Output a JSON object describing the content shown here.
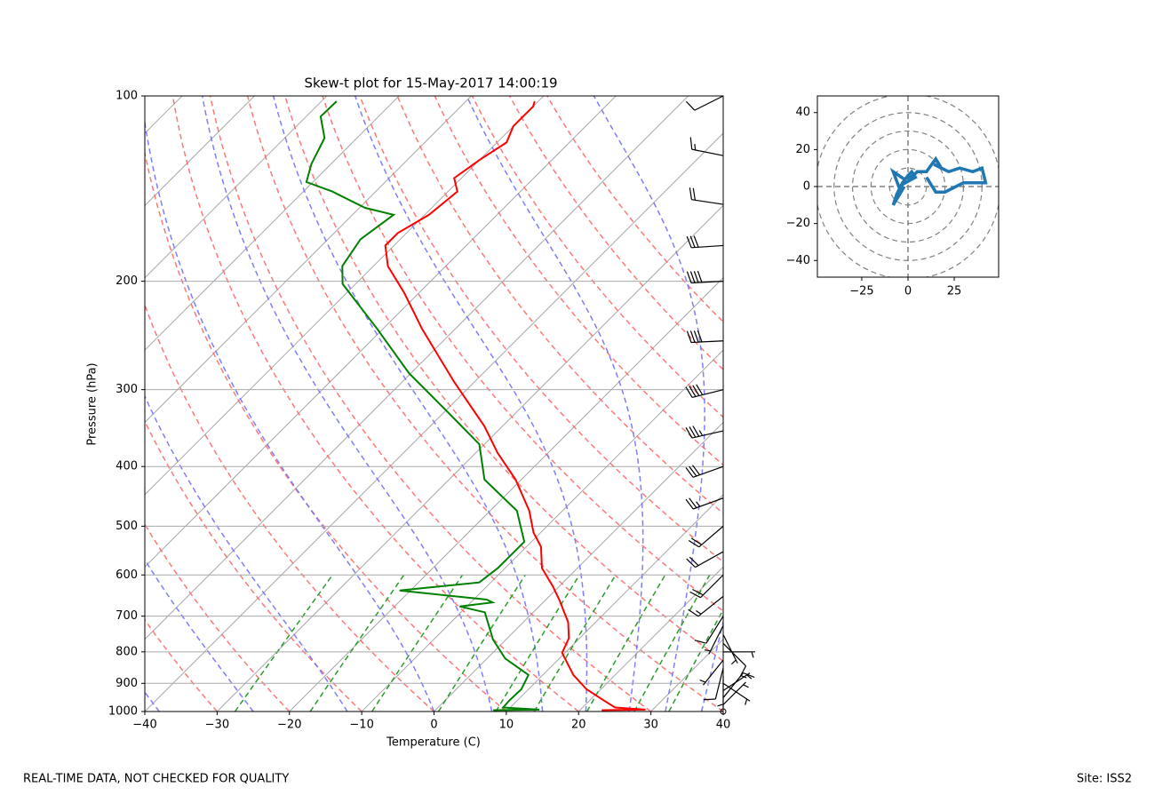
{
  "chart_data": [
    {
      "type": "skewt",
      "title": "Skew-t plot for 15-May-2017 14:00:19",
      "x_label": "Temperature (C)",
      "y_label": "Pressure (hPa)",
      "xlim": [
        -40,
        40
      ],
      "xticks": [
        {
          "value": -40,
          "label": "−40"
        },
        {
          "value": -30,
          "label": "−30"
        },
        {
          "value": -20,
          "label": "−20"
        },
        {
          "value": -10,
          "label": "−10"
        },
        0,
        10,
        20,
        30,
        40
      ],
      "ylim": [
        1000,
        100
      ],
      "log_y": true,
      "yticks": [
        100,
        200,
        300,
        400,
        500,
        600,
        700,
        800,
        900,
        1000
      ],
      "grid": true,
      "series": [
        {
          "color": "#ff0000",
          "pressure": [
            995,
            993,
            985,
            960,
            920,
            872,
            803,
            760,
            716,
            660,
            626,
            585,
            540,
            512,
            472,
            420,
            380,
            344,
            292,
            239,
            209,
            189,
            175,
            167,
            156,
            143,
            136,
            127,
            119,
            112,
            104,
            102
          ],
          "values": [
            23,
            29,
            24.5,
            22,
            18,
            14.2,
            9.6,
            8.5,
            6.2,
            2,
            -0.9,
            -4.9,
            -8,
            -11,
            -14.6,
            -20.8,
            -27,
            -32.5,
            -42.7,
            -54.6,
            -62,
            -68,
            -71.2,
            -71.2,
            -69.4,
            -68.7,
            -71,
            -70,
            -68.7,
            -70,
            -70,
            -70.5
          ]
        },
        {
          "color": "#008000",
          "pressure": [
            995,
            993,
            985,
            960,
            920,
            872,
            820,
            764,
            700,
            690,
            675,
            665,
            658,
            636,
            617,
            585,
            530,
            472,
            420,
            368,
            322,
            282,
            239,
            202,
            189,
            171,
            156,
            152,
            143,
            138,
            129,
            117,
            108,
            102
          ],
          "values": [
            8,
            14.3,
            9,
            8.9,
            9,
            8,
            2.5,
            -1.8,
            -6,
            -6.7,
            -11,
            -7,
            -8.2,
            -21.5,
            -11.6,
            -11,
            -11,
            -16.3,
            -25.1,
            -30.7,
            -40.5,
            -50.3,
            -60.8,
            -71.8,
            -74.3,
            -75.5,
            -74.3,
            -79.2,
            -86,
            -90.9,
            -92.7,
            -94.5,
            -98,
            -97.9
          ]
        }
      ]
    },
    {
      "type": "hodograph",
      "color": "#1f77b4",
      "pressure": [
        1000,
        975,
        950,
        925,
        900,
        875,
        850,
        825,
        800,
        775,
        750,
        725,
        700,
        650,
        600,
        550,
        500,
        450,
        400,
        350,
        300,
        250,
        200,
        175,
        150,
        125,
        100
      ],
      "x": [
        -2,
        -5,
        -8,
        -6,
        -3,
        0,
        2,
        4,
        -5,
        -8,
        -2,
        3,
        5,
        10,
        15,
        18,
        14,
        22,
        28,
        35,
        40,
        42,
        38,
        30,
        20,
        15,
        10
      ],
      "values": [
        0,
        -5,
        -10,
        -4,
        2,
        6,
        8,
        5,
        0,
        8,
        4,
        6,
        8,
        8,
        15,
        10,
        12,
        8,
        10,
        8,
        10,
        2,
        2,
        2,
        -3,
        -3,
        5
      ],
      "xlim": [
        -49,
        49
      ],
      "ylim": [
        -49,
        49
      ],
      "xticks": [
        {
          "value": -25,
          "label": "−25"
        },
        0,
        25
      ],
      "yticks": [
        {
          "value": -40,
          "label": "−40"
        },
        {
          "value": -20,
          "label": "−20"
        },
        0,
        20,
        40
      ],
      "rings": [
        10,
        20,
        30,
        40,
        50
      ]
    }
  ],
  "footer": {
    "left": "REAL-TIME DATA, NOT CHECKED FOR QUALITY",
    "right": "Site: ISS2"
  }
}
